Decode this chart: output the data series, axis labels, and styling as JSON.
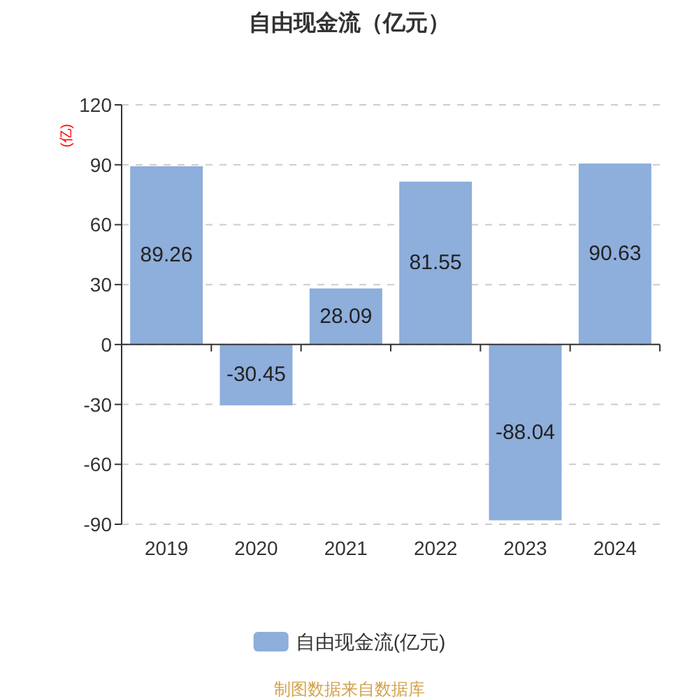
{
  "chart_data": {
    "type": "bar",
    "title": "自由现金流（亿元）",
    "ylabel": "(亿)",
    "categories": [
      "2019",
      "2020",
      "2021",
      "2022",
      "2023",
      "2024"
    ],
    "series": [
      {
        "name": "自由现金流(亿元)",
        "color": "#8eaedb",
        "values": [
          89.26,
          -30.45,
          28.09,
          81.55,
          -88.04,
          90.63
        ]
      }
    ],
    "ylim": [
      -90,
      120
    ],
    "yticks": [
      -90,
      -60,
      -30,
      0,
      30,
      60,
      90,
      120
    ],
    "grid": "y",
    "legend": "bottom",
    "data_labels": true,
    "annotations": [
      "制图数据来自数据库"
    ]
  }
}
